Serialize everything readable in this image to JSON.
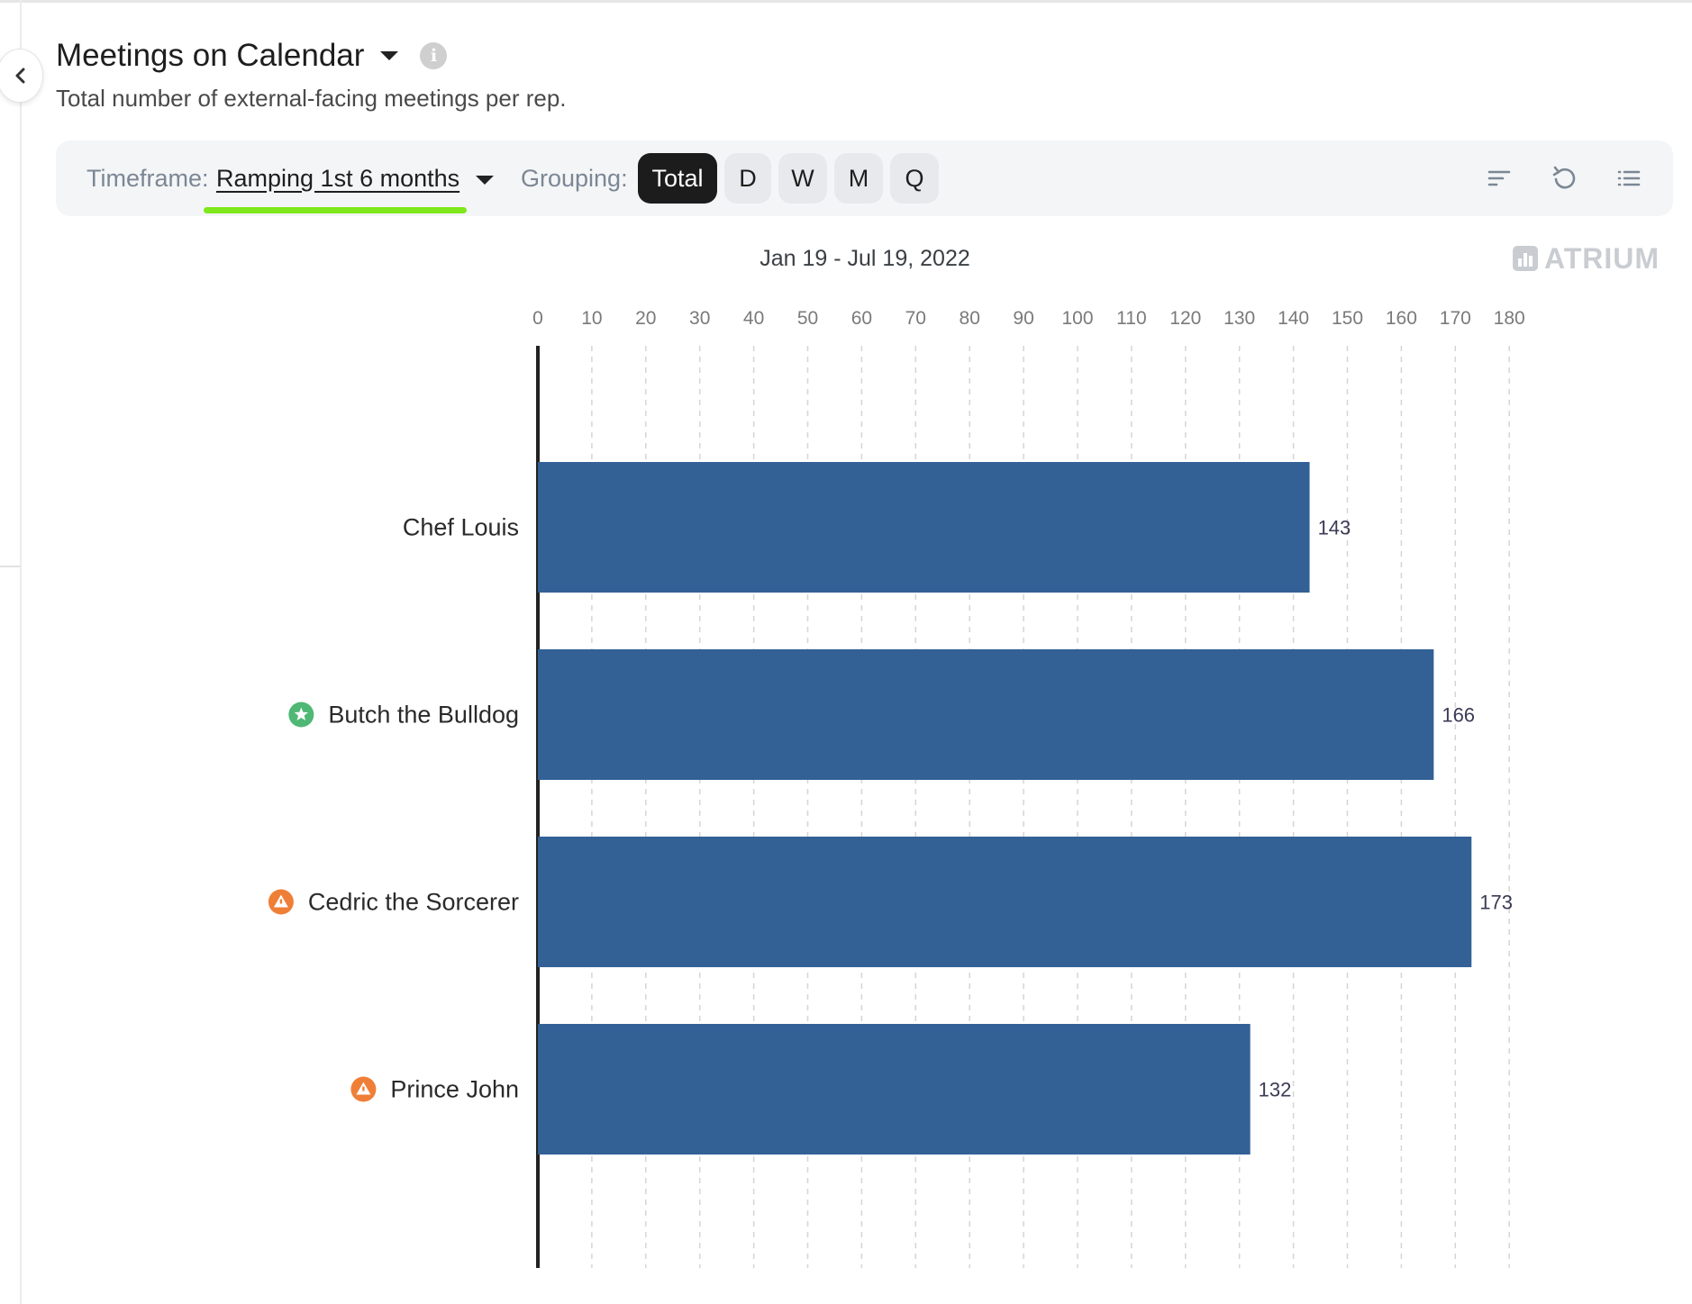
{
  "header": {
    "title": "Meetings on Calendar",
    "subtitle": "Total number of external-facing meetings per rep."
  },
  "toolbar": {
    "timeframe_label": "Timeframe:",
    "timeframe_value": "Ramping 1st 6 months",
    "grouping_label": "Grouping:",
    "grouping_options": [
      "Total",
      "D",
      "W",
      "M",
      "Q"
    ],
    "grouping_selected": "Total",
    "highlight_color": "#7ee81c"
  },
  "date_range": "Jan 19 - Jul 19, 2022",
  "brand": "ATRIUM",
  "colors": {
    "bar": "#336196",
    "star_badge": "#4fb874",
    "warning_badge": "#ef7f37"
  },
  "chart_data": {
    "type": "bar",
    "orientation": "horizontal",
    "categories": [
      "Chef Louis",
      "Butch the Bulldog",
      "Cedric the Sorcerer",
      "Prince John"
    ],
    "values": [
      143,
      166,
      173,
      132
    ],
    "badges": [
      "none",
      "star",
      "warning",
      "warning"
    ],
    "xlim": [
      0,
      180
    ],
    "xticks": [
      0,
      10,
      20,
      30,
      40,
      50,
      60,
      70,
      80,
      90,
      100,
      110,
      120,
      130,
      140,
      150,
      160,
      170,
      180
    ],
    "axis_position": "top",
    "grid": true,
    "data_labels": true
  }
}
